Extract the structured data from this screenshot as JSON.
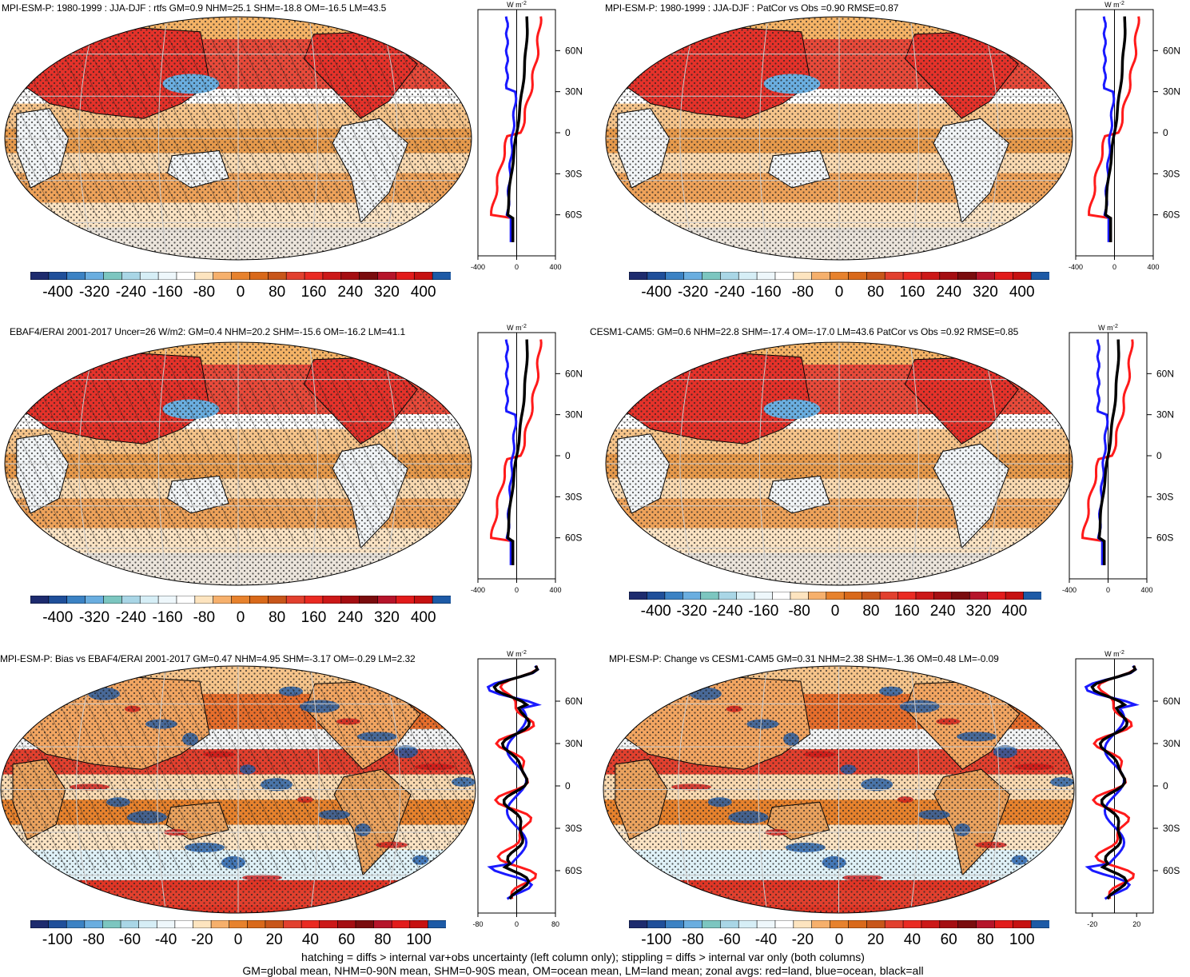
{
  "panels": [
    {
      "title": "MPI-ESM-P: 1980-1999 : JJA-DJF : rtfs GM=0.9 NHM=25.1 SHM=-18.8 OM=-16.5 LM=43.5",
      "zonal_unit": "W m",
      "zonal_unit_exp": "-2",
      "zonal_xticks": [
        "-400",
        "0",
        "400"
      ],
      "zonal_xrange": [
        -400,
        400
      ],
      "lat_ticks": [
        "60N",
        "30N",
        "0",
        "30S",
        "60S"
      ],
      "colorbar_labels": [
        "-400",
        "-320",
        "-240",
        "-160",
        "-80",
        "0",
        "80",
        "160",
        "240",
        "320",
        "400"
      ],
      "style": "seasonal",
      "hatched": true
    },
    {
      "title": "MPI-ESM-P: 1980-1999 : JJA-DJF : PatCor vs Obs =0.90 RMSE=0.87",
      "zonal_unit": "W m",
      "zonal_unit_exp": "-2",
      "zonal_xticks": [
        "-400",
        "0",
        "400"
      ],
      "zonal_xrange": [
        -400,
        400
      ],
      "lat_ticks": [
        "60N",
        "30N",
        "0",
        "30S",
        "60S"
      ],
      "colorbar_labels": [
        "-400",
        "-320",
        "-240",
        "-160",
        "-80",
        "0",
        "80",
        "160",
        "240",
        "320",
        "400"
      ],
      "style": "seasonal",
      "hatched": false
    },
    {
      "title": "EBAF4/ERAI 2001-2017 Uncer=26 W/m2: GM=0.4 NHM=20.2 SHM=-15.6 OM=-16.2 LM=41.1",
      "zonal_unit": "W m",
      "zonal_unit_exp": "-2",
      "zonal_xticks": [
        "-400",
        "0",
        "400"
      ],
      "zonal_xrange": [
        -400,
        400
      ],
      "lat_ticks": [
        "60N",
        "30N",
        "0",
        "30S",
        "60S"
      ],
      "colorbar_labels": [
        "-400",
        "-320",
        "-240",
        "-160",
        "-80",
        "0",
        "80",
        "160",
        "240",
        "320",
        "400"
      ],
      "style": "seasonal",
      "hatched": true
    },
    {
      "title": "CESM1-CAM5: GM=0.6 NHM=22.8 SHM=-17.4 OM=-17.0 LM=43.6 PatCor vs Obs =0.92 RMSE=0.85",
      "zonal_unit": "W m",
      "zonal_unit_exp": "-2",
      "zonal_xticks": [
        "-400",
        "0",
        "400"
      ],
      "zonal_xrange": [
        -400,
        400
      ],
      "lat_ticks": [
        "60N",
        "30N",
        "0",
        "30S",
        "60S"
      ],
      "colorbar_labels": [
        "-400",
        "-320",
        "-240",
        "-160",
        "-80",
        "0",
        "80",
        "160",
        "240",
        "320",
        "400"
      ],
      "style": "seasonal",
      "hatched": false
    },
    {
      "title": "MPI-ESM-P: Bias vs EBAF4/ERAI 2001-2017 GM=0.47 NHM=4.95 SHM=-3.17 OM=-0.29 LM=2.32",
      "zonal_unit": "W m",
      "zonal_unit_exp": "-2",
      "zonal_xticks": [
        "-80",
        "0",
        "80"
      ],
      "zonal_xrange": [
        -80,
        80
      ],
      "lat_ticks": [
        "60N",
        "30N",
        "0",
        "30S",
        "60S"
      ],
      "colorbar_labels": [
        "-100",
        "-80",
        "-60",
        "-40",
        "-20",
        "0",
        "20",
        "40",
        "60",
        "80",
        "100"
      ],
      "style": "diff",
      "hatched": true
    },
    {
      "title": "MPI-ESM-P: Change vs CESM1-CAM5 GM=0.31 NHM=2.38 SHM=-1.36 OM=0.48 LM=-0.09",
      "zonal_unit": "W m",
      "zonal_unit_exp": "-2",
      "zonal_xticks": [
        "-20",
        "20"
      ],
      "zonal_xrange": [
        -35,
        35
      ],
      "zonal_xtick_values": [
        -20,
        20
      ],
      "lat_ticks": [
        "60N",
        "30N",
        "0",
        "30S",
        "60S"
      ],
      "colorbar_labels": [
        "-100",
        "-80",
        "-60",
        "-40",
        "-20",
        "0",
        "20",
        "40",
        "60",
        "80",
        "100"
      ],
      "style": "diff",
      "hatched": false
    }
  ],
  "colorbar_colors": [
    "#1d2b6e",
    "#1f4f9a",
    "#3b82c4",
    "#6aaee0",
    "#7cc6c0",
    "#a9d6e6",
    "#d6eef6",
    "#eef7fb",
    "#ffffff",
    "#fde4bf",
    "#f6b06c",
    "#e7822d",
    "#d9691a",
    "#c8561a",
    "#e2402e",
    "#ea2a22",
    "#cc1818",
    "#a50e12",
    "#7a0c0e",
    "#b6142a",
    "#e21b1b",
    "#c61111",
    "#1d5aa6"
  ],
  "footer": {
    "line1": "hatching = diffs > internal var+obs uncertainty (left column only); stippling = diffs > internal var only (both columns)",
    "line2": "GM=global mean, NHM=0-90N mean, SHM=0-90S mean, OM=ocean mean, LM=land mean; zonal avgs: red=land, blue=ocean, black=all"
  },
  "colors": {
    "land": "#ff1a1a",
    "ocean": "#1a1aff",
    "all": "#000000"
  },
  "chart_data": [
    {
      "type": "line",
      "series": [
        {
          "name": "land",
          "values": []
        },
        {
          "name": "ocean",
          "values": []
        },
        {
          "name": "all",
          "values": []
        }
      ],
      "xlim": [
        -400,
        400
      ],
      "ylim": [
        -90,
        90
      ]
    },
    {
      "type": "line",
      "series": [
        {
          "name": "land",
          "values": []
        },
        {
          "name": "ocean",
          "values": []
        },
        {
          "name": "all",
          "values": []
        }
      ],
      "xlim": [
        -400,
        400
      ],
      "ylim": [
        -90,
        90
      ]
    },
    {
      "type": "line",
      "series": [
        {
          "name": "land",
          "values": []
        },
        {
          "name": "ocean",
          "values": []
        },
        {
          "name": "all",
          "values": []
        }
      ],
      "xlim": [
        -400,
        400
      ],
      "ylim": [
        -90,
        90
      ]
    },
    {
      "type": "line",
      "series": [
        {
          "name": "land",
          "values": []
        },
        {
          "name": "ocean",
          "values": []
        },
        {
          "name": "all",
          "values": []
        }
      ],
      "xlim": [
        -400,
        400
      ],
      "ylim": [
        -90,
        90
      ]
    },
    {
      "type": "line",
      "series": [
        {
          "name": "land",
          "values": []
        },
        {
          "name": "ocean",
          "values": []
        },
        {
          "name": "all",
          "values": []
        }
      ],
      "xlim": [
        -80,
        80
      ],
      "ylim": [
        -90,
        90
      ]
    },
    {
      "type": "line",
      "series": [
        {
          "name": "land",
          "values": []
        },
        {
          "name": "ocean",
          "values": []
        },
        {
          "name": "all",
          "values": []
        }
      ],
      "xlim": [
        -35,
        35
      ],
      "ylim": [
        -90,
        90
      ]
    }
  ]
}
